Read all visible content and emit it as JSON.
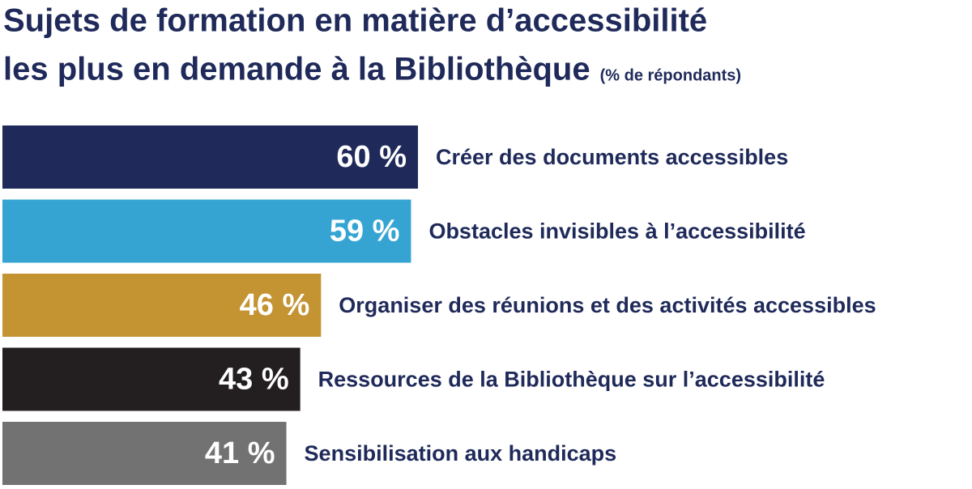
{
  "chart_data": {
    "type": "bar",
    "title": [
      "Sujets de formation en matière d’accessibilité",
      "les plus en demande à la Bibliothèque"
    ],
    "subtitle": "(% de répondants)",
    "categories": [
      "Créer des documents accessibles",
      "Obstacles invisibles à l’accessibilité",
      "Organiser des réunions et des activités accessibles",
      "Ressources de la Bibliothèque sur l’accessibilité",
      "Sensibilisation aux handicaps"
    ],
    "values": [
      60,
      59,
      46,
      43,
      41
    ],
    "value_labels": [
      "60 %",
      "59 %",
      "46 %",
      "43 %",
      "41 %"
    ],
    "colors": [
      "#1f2a5a",
      "#35a4d3",
      "#c49332",
      "#231f20",
      "#727272"
    ]
  }
}
